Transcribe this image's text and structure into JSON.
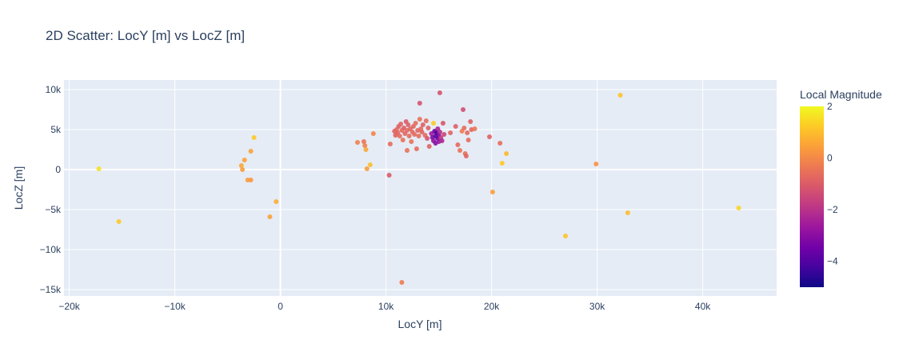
{
  "chart_data": {
    "type": "scatter",
    "title": "2D Scatter: LocY [m] vs LocZ [m]",
    "xlabel": "LocY [m]",
    "ylabel": "LocZ [m]",
    "xlim": [
      -20500,
      47000
    ],
    "ylim": [
      -15800,
      11200
    ],
    "x_ticks": [
      -20000,
      -10000,
      0,
      10000,
      20000,
      30000,
      40000
    ],
    "x_tick_labels": [
      "−20k",
      "−10k",
      "0",
      "10k",
      "20k",
      "30k",
      "40k"
    ],
    "y_ticks": [
      10000,
      5000,
      0,
      -5000,
      -10000,
      -15000
    ],
    "y_tick_labels": [
      "10k",
      "5k",
      "0",
      "−5k",
      "−10k",
      "−15k"
    ],
    "grid": true,
    "colorbar": {
      "title": "Local Magnitude",
      "range": [
        -5,
        2
      ],
      "ticks": [
        2,
        0,
        -2,
        -4
      ],
      "tick_labels": [
        "2",
        "0",
        "−2",
        "−4"
      ]
    },
    "colors": {
      "plot_bg": "#e5ecf6",
      "grid": "#ffffff",
      "text": "#2a3f5f",
      "colorscale": [
        "#0d0887",
        "#46039f",
        "#7201a8",
        "#9c179e",
        "#bd3786",
        "#d8576b",
        "#ed7953",
        "#fb9f3a",
        "#fdca26",
        "#f0f921"
      ]
    },
    "points": [
      {
        "x": -17200,
        "y": 100,
        "m": 1.6
      },
      {
        "x": -15300,
        "y": -6500,
        "m": 1.2
      },
      {
        "x": -3700,
        "y": 500,
        "m": 0.6
      },
      {
        "x": -3600,
        "y": 0,
        "m": 0.4
      },
      {
        "x": -3400,
        "y": 1200,
        "m": 0.5
      },
      {
        "x": -3100,
        "y": -1300,
        "m": 0.4
      },
      {
        "x": -2800,
        "y": -1300,
        "m": 0.3
      },
      {
        "x": -2800,
        "y": 2300,
        "m": 0.5
      },
      {
        "x": -2500,
        "y": 4000,
        "m": 1.2
      },
      {
        "x": -1000,
        "y": -5900,
        "m": 0.5
      },
      {
        "x": -400,
        "y": -4000,
        "m": 0.7
      },
      {
        "x": 7300,
        "y": 3400,
        "m": -0.2
      },
      {
        "x": 7900,
        "y": 3500,
        "m": -0.4
      },
      {
        "x": 8000,
        "y": 3000,
        "m": -0.2
      },
      {
        "x": 8100,
        "y": 2500,
        "m": 0.6
      },
      {
        "x": 8200,
        "y": 100,
        "m": 0.4
      },
      {
        "x": 8500,
        "y": 600,
        "m": 1.0
      },
      {
        "x": 8800,
        "y": 4500,
        "m": -0.1
      },
      {
        "x": 10300,
        "y": -700,
        "m": -1.0
      },
      {
        "x": 10400,
        "y": 3200,
        "m": -0.6
      },
      {
        "x": 10800,
        "y": 4800,
        "m": -0.8
      },
      {
        "x": 10900,
        "y": 4300,
        "m": -0.9
      },
      {
        "x": 11000,
        "y": 5000,
        "m": -0.7
      },
      {
        "x": 11100,
        "y": 4600,
        "m": -0.8
      },
      {
        "x": 11200,
        "y": 5400,
        "m": -0.9
      },
      {
        "x": 11300,
        "y": 4200,
        "m": -0.6
      },
      {
        "x": 11400,
        "y": 5700,
        "m": -0.8
      },
      {
        "x": 11500,
        "y": 4900,
        "m": -0.7
      },
      {
        "x": 11500,
        "y": -14100,
        "m": -0.3
      },
      {
        "x": 11600,
        "y": 3700,
        "m": -0.5
      },
      {
        "x": 11700,
        "y": 5200,
        "m": -0.9
      },
      {
        "x": 11800,
        "y": 4500,
        "m": -0.8
      },
      {
        "x": 11900,
        "y": 6000,
        "m": -1.0
      },
      {
        "x": 12000,
        "y": 4900,
        "m": -0.7
      },
      {
        "x": 12000,
        "y": 2400,
        "m": -0.5
      },
      {
        "x": 12100,
        "y": 5600,
        "m": -0.9
      },
      {
        "x": 12200,
        "y": 4200,
        "m": -0.6
      },
      {
        "x": 12300,
        "y": 5100,
        "m": -0.8
      },
      {
        "x": 12400,
        "y": 3500,
        "m": -0.5
      },
      {
        "x": 12500,
        "y": 4700,
        "m": -0.7
      },
      {
        "x": 12600,
        "y": 5400,
        "m": -0.8
      },
      {
        "x": 12700,
        "y": 4400,
        "m": -0.7
      },
      {
        "x": 12800,
        "y": 5800,
        "m": -0.6
      },
      {
        "x": 12900,
        "y": 2600,
        "m": -0.6
      },
      {
        "x": 13000,
        "y": 4900,
        "m": -0.8
      },
      {
        "x": 13100,
        "y": 4200,
        "m": -0.6
      },
      {
        "x": 13200,
        "y": 6300,
        "m": -0.5
      },
      {
        "x": 13200,
        "y": 8300,
        "m": -1.2
      },
      {
        "x": 13300,
        "y": 5100,
        "m": -0.7
      },
      {
        "x": 13400,
        "y": 4700,
        "m": -0.8
      },
      {
        "x": 13500,
        "y": 5600,
        "m": -0.9
      },
      {
        "x": 13700,
        "y": 4300,
        "m": -0.7
      },
      {
        "x": 13800,
        "y": 6100,
        "m": -0.6
      },
      {
        "x": 13900,
        "y": 3900,
        "m": -1.2
      },
      {
        "x": 14000,
        "y": 5200,
        "m": -0.9
      },
      {
        "x": 14100,
        "y": 2900,
        "m": -0.8
      },
      {
        "x": 14300,
        "y": 4500,
        "m": -2.6
      },
      {
        "x": 14400,
        "y": 4000,
        "m": -3.2
      },
      {
        "x": 14500,
        "y": 3600,
        "m": -2.8
      },
      {
        "x": 14500,
        "y": 5800,
        "m": 1.2
      },
      {
        "x": 14600,
        "y": 4800,
        "m": -3.5
      },
      {
        "x": 14700,
        "y": 4200,
        "m": -3.9
      },
      {
        "x": 14700,
        "y": 3300,
        "m": -3.0
      },
      {
        "x": 14800,
        "y": 4600,
        "m": -4.1
      },
      {
        "x": 14900,
        "y": 3900,
        "m": -3.6
      },
      {
        "x": 14900,
        "y": 5100,
        "m": -2.4
      },
      {
        "x": 15000,
        "y": 4300,
        "m": -3.3
      },
      {
        "x": 15000,
        "y": 3500,
        "m": -2.7
      },
      {
        "x": 15100,
        "y": 4700,
        "m": -2.1
      },
      {
        "x": 15100,
        "y": 9600,
        "m": -1.2
      },
      {
        "x": 15200,
        "y": 4000,
        "m": -1.8
      },
      {
        "x": 15300,
        "y": 3600,
        "m": -2.3
      },
      {
        "x": 15400,
        "y": 5800,
        "m": -1.1
      },
      {
        "x": 15500,
        "y": 4400,
        "m": -1.5
      },
      {
        "x": 16100,
        "y": 4600,
        "m": -0.8
      },
      {
        "x": 16600,
        "y": 5400,
        "m": -0.9
      },
      {
        "x": 16800,
        "y": 3100,
        "m": -0.7
      },
      {
        "x": 17000,
        "y": 2400,
        "m": -0.5
      },
      {
        "x": 17200,
        "y": 4800,
        "m": -0.3
      },
      {
        "x": 17300,
        "y": 7500,
        "m": -1.3
      },
      {
        "x": 17400,
        "y": 5200,
        "m": -0.6
      },
      {
        "x": 17500,
        "y": 2000,
        "m": -0.5
      },
      {
        "x": 17600,
        "y": 1700,
        "m": -0.8
      },
      {
        "x": 17700,
        "y": 4600,
        "m": -0.7
      },
      {
        "x": 17800,
        "y": 3700,
        "m": -0.6
      },
      {
        "x": 18000,
        "y": 6000,
        "m": -0.9
      },
      {
        "x": 18100,
        "y": 5000,
        "m": -0.8
      },
      {
        "x": 18400,
        "y": 5100,
        "m": -0.4
      },
      {
        "x": 19800,
        "y": 4100,
        "m": -0.9
      },
      {
        "x": 20100,
        "y": -2800,
        "m": 0.4
      },
      {
        "x": 20800,
        "y": 3300,
        "m": -0.6
      },
      {
        "x": 21000,
        "y": 800,
        "m": 1.2
      },
      {
        "x": 21400,
        "y": 2000,
        "m": 0.9
      },
      {
        "x": 27000,
        "y": -8300,
        "m": 1.1
      },
      {
        "x": 29900,
        "y": 700,
        "m": 0.2
      },
      {
        "x": 32200,
        "y": 9300,
        "m": 1.1
      },
      {
        "x": 32900,
        "y": -5400,
        "m": 1.0
      },
      {
        "x": 43400,
        "y": -4800,
        "m": 1.4
      }
    ]
  }
}
